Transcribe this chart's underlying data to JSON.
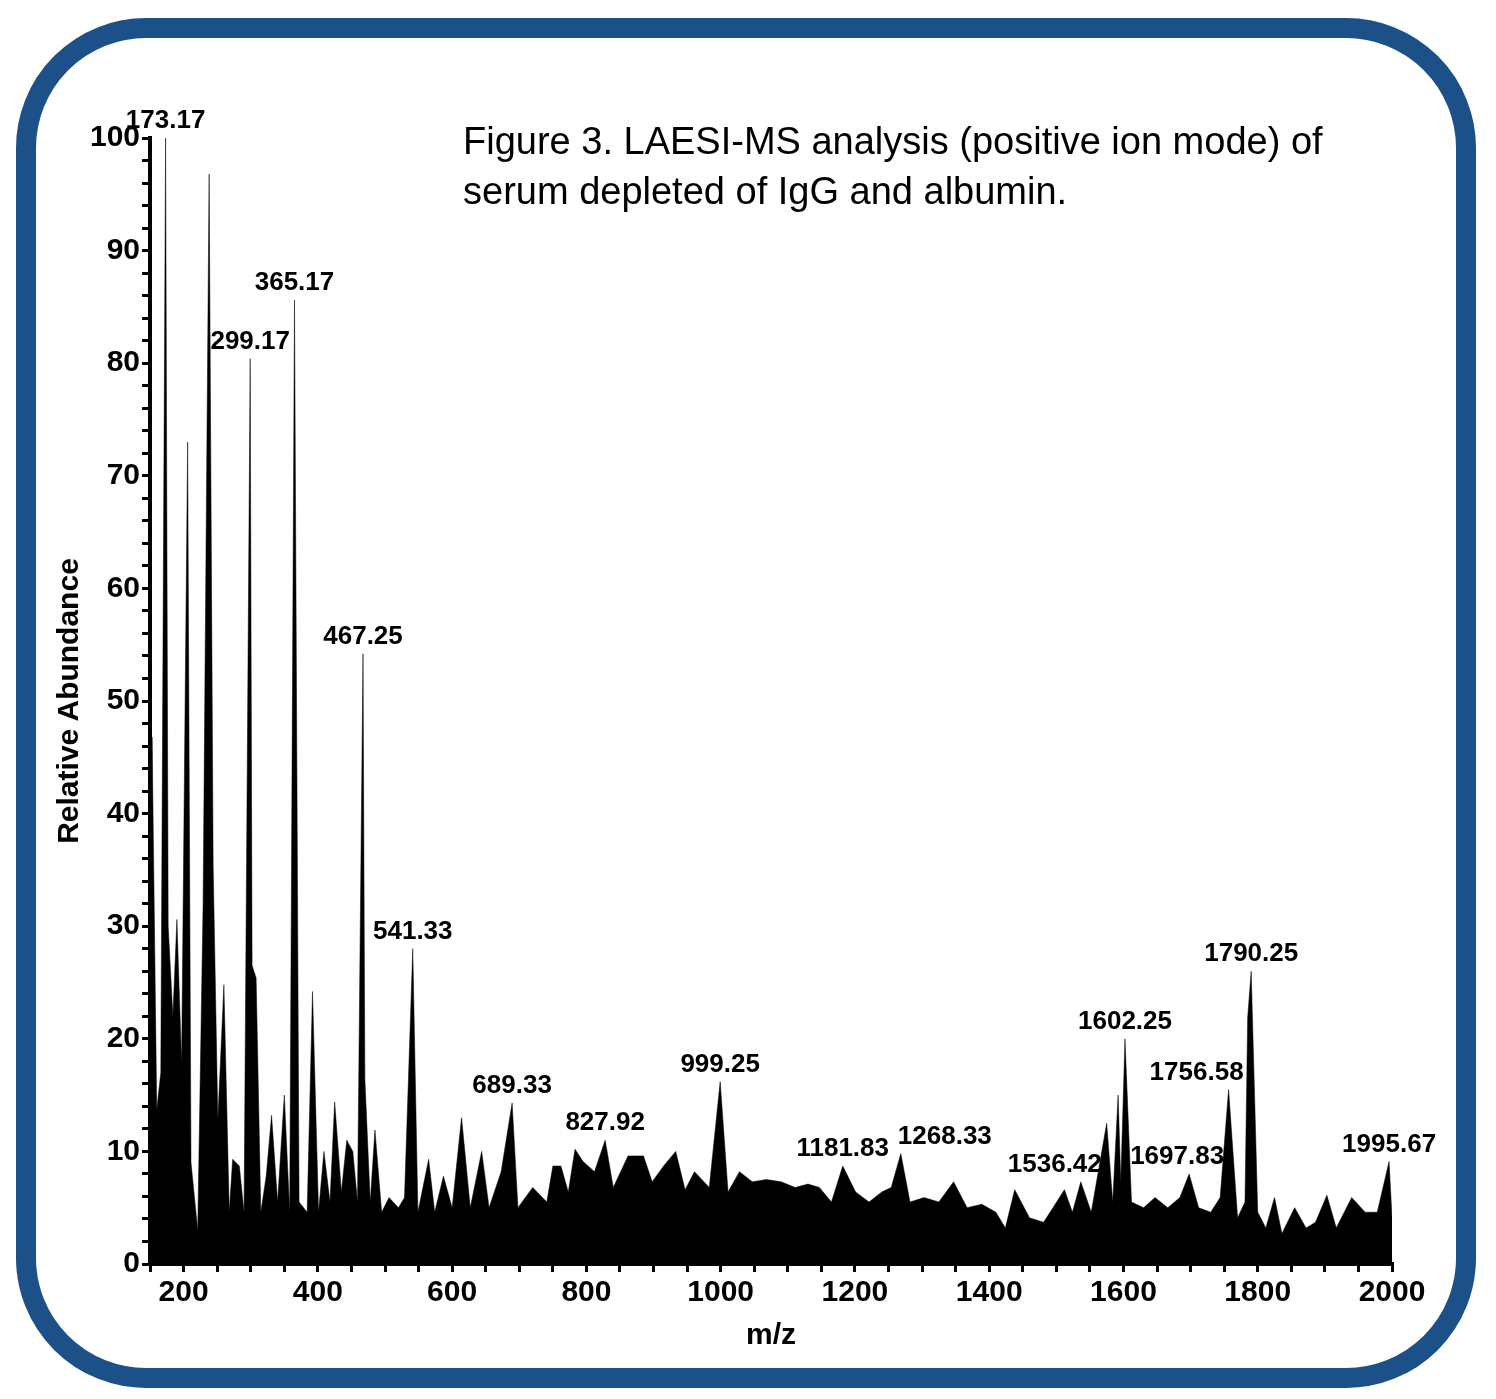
{
  "chart_data": {
    "type": "area",
    "title": "Figure 3.  LAESI-MS analysis (positive ion mode) of serum depleted of IgG and albumin.",
    "xlabel": "m/z",
    "ylabel": "Relative Abundance",
    "x": [
      150,
      153,
      160,
      166,
      173.17,
      177,
      184,
      190,
      197,
      206,
      211,
      221,
      229,
      238,
      244,
      251,
      260,
      268,
      273,
      283,
      290,
      299.17,
      302,
      308,
      315,
      323,
      331,
      340,
      350,
      358,
      365.17,
      372,
      384,
      392,
      401,
      409,
      418,
      425,
      435,
      443,
      452,
      459,
      467.25,
      470,
      478,
      485,
      495,
      506,
      520,
      529,
      541.33,
      549,
      565,
      574,
      587,
      600,
      614,
      627,
      644,
      655,
      673,
      689.33,
      698,
      720,
      741,
      750,
      762,
      773,
      783,
      795,
      812,
      827.92,
      840,
      862,
      885,
      898,
      915,
      933,
      947,
      961,
      983,
      999.25,
      1011,
      1028,
      1047,
      1068,
      1090,
      1111,
      1130,
      1147,
      1165,
      1181.83,
      1201,
      1221,
      1240,
      1254,
      1268.33,
      1282,
      1303,
      1325,
      1347,
      1367,
      1389,
      1410,
      1424,
      1438,
      1460,
      1481,
      1495,
      1512,
      1524,
      1536.42,
      1552,
      1575,
      1584,
      1592,
      1596,
      1602.25,
      1612,
      1630,
      1647,
      1666,
      1684,
      1697.83,
      1712,
      1730,
      1744,
      1756.58,
      1770,
      1781,
      1785,
      1790.25,
      1800,
      1812,
      1825,
      1836,
      1855,
      1872,
      1886,
      1903,
      1917,
      1940,
      1960,
      1978,
      1995.67,
      2000
    ],
    "series": [
      {
        "color": "#000000",
        "values": [
          3,
          46.8,
          13.7,
          17,
          100,
          30,
          22,
          30.6,
          17.8,
          73,
          9,
          3,
          32,
          96.8,
          35.4,
          12.8,
          24.8,
          4.6,
          9.3,
          8.7,
          4.6,
          80.4,
          26.5,
          25.4,
          4.6,
          7.8,
          13.2,
          5.5,
          15,
          4.6,
          85.6,
          5.5,
          4.6,
          24.2,
          4.6,
          10,
          5.5,
          14.4,
          6.4,
          11,
          10,
          5.5,
          54.2,
          16.4,
          5.5,
          11.9,
          4.6,
          5.9,
          5,
          5.9,
          28,
          4.6,
          9.3,
          4.6,
          7.8,
          5,
          13,
          5,
          10,
          5,
          8.2,
          14.3,
          5,
          6.8,
          5.5,
          8.7,
          8.7,
          6.4,
          10.2,
          9.1,
          8.2,
          11,
          6.8,
          9.6,
          9.6,
          7.3,
          8.7,
          10,
          6.6,
          8.2,
          6.8,
          16.2,
          6.4,
          8.2,
          7.3,
          7.5,
          7.3,
          6.8,
          7.1,
          6.8,
          5.5,
          8.7,
          6.4,
          5.5,
          6.4,
          6.8,
          9.8,
          5.5,
          5.9,
          5.5,
          7.3,
          5,
          5.3,
          4.6,
          3.2,
          6.6,
          4.1,
          3.7,
          5,
          6.6,
          4.6,
          7.3,
          4.6,
          12.5,
          5.5,
          15,
          7.3,
          20,
          5.5,
          5,
          5.9,
          5,
          5.9,
          8,
          5,
          4.6,
          5.9,
          15.5,
          4.1,
          5.5,
          21.9,
          26,
          4.6,
          3.2,
          5.9,
          2.7,
          5,
          3.2,
          3.7,
          6.1,
          3.2,
          5.9,
          4.6,
          4.6,
          9.1,
          4.1
        ]
      }
    ],
    "xlim": [
      150,
      2000
    ],
    "xticks": [
      {
        "value": 150,
        "label": null
      },
      200,
      {
        "value": 250,
        "label": null
      },
      {
        "value": 300,
        "label": null
      },
      {
        "value": 350,
        "label": null
      },
      400,
      {
        "value": 450,
        "label": null
      },
      {
        "value": 500,
        "label": null
      },
      {
        "value": 550,
        "label": null
      },
      600,
      {
        "value": 650,
        "label": null
      },
      {
        "value": 700,
        "label": null
      },
      {
        "value": 750,
        "label": null
      },
      800,
      {
        "value": 850,
        "label": null
      },
      {
        "value": 900,
        "label": null
      },
      {
        "value": 950,
        "label": null
      },
      1000,
      {
        "value": 1050,
        "label": null
      },
      {
        "value": 1100,
        "label": null
      },
      {
        "value": 1150,
        "label": null
      },
      1200,
      {
        "value": 1250,
        "label": null
      },
      {
        "value": 1300,
        "label": null
      },
      {
        "value": 1350,
        "label": null
      },
      1400,
      {
        "value": 1450,
        "label": null
      },
      {
        "value": 1500,
        "label": null
      },
      {
        "value": 1550,
        "label": null
      },
      1600,
      {
        "value": 1650,
        "label": null
      },
      {
        "value": 1700,
        "label": null
      },
      {
        "value": 1750,
        "label": null
      },
      1800,
      {
        "value": 1850,
        "label": null
      },
      {
        "value": 1900,
        "label": null
      },
      {
        "value": 1950,
        "label": null
      },
      2000
    ],
    "ylim": [
      0,
      100
    ],
    "yticks": [
      0,
      {
        "value": 2,
        "label": null
      },
      {
        "value": 4,
        "label": null
      },
      {
        "value": 6,
        "label": null
      },
      {
        "value": 8,
        "label": null
      },
      10,
      {
        "value": 12,
        "label": null
      },
      {
        "value": 14,
        "label": null
      },
      {
        "value": 16,
        "label": null
      },
      {
        "value": 18,
        "label": null
      },
      20,
      {
        "value": 22,
        "label": null
      },
      {
        "value": 24,
        "label": null
      },
      {
        "value": 26,
        "label": null
      },
      {
        "value": 28,
        "label": null
      },
      30,
      {
        "value": 32,
        "label": null
      },
      {
        "value": 34,
        "label": null
      },
      {
        "value": 36,
        "label": null
      },
      {
        "value": 38,
        "label": null
      },
      40,
      {
        "value": 42,
        "label": null
      },
      {
        "value": 44,
        "label": null
      },
      {
        "value": 46,
        "label": null
      },
      {
        "value": 48,
        "label": null
      },
      50,
      {
        "value": 52,
        "label": null
      },
      {
        "value": 54,
        "label": null
      },
      {
        "value": 56,
        "label": null
      },
      {
        "value": 58,
        "label": null
      },
      60,
      {
        "value": 62,
        "label": null
      },
      {
        "value": 64,
        "label": null
      },
      {
        "value": 66,
        "label": null
      },
      {
        "value": 68,
        "label": null
      },
      70,
      {
        "value": 72,
        "label": null
      },
      {
        "value": 74,
        "label": null
      },
      {
        "value": 76,
        "label": null
      },
      {
        "value": 78,
        "label": null
      },
      80,
      {
        "value": 82,
        "label": null
      },
      {
        "value": 84,
        "label": null
      },
      {
        "value": 86,
        "label": null
      },
      {
        "value": 88,
        "label": null
      },
      90,
      {
        "value": 92,
        "label": null
      },
      {
        "value": 94,
        "label": null
      },
      {
        "value": 96,
        "label": null
      },
      {
        "value": 98,
        "label": null
      },
      100
    ],
    "annotations": [
      {
        "text": "173.17",
        "x": 173.17,
        "y": 100
      },
      {
        "text": "299.17",
        "x": 299.17,
        "y": 80.4
      },
      {
        "text": "365.17",
        "x": 365.17,
        "y": 85.6
      },
      {
        "text": "467.25",
        "x": 467.25,
        "y": 54.2
      },
      {
        "text": "541.33",
        "x": 541.33,
        "y": 28
      },
      {
        "text": "689.33",
        "x": 689.33,
        "y": 14.3
      },
      {
        "text": "827.92",
        "x": 827.92,
        "y": 11
      },
      {
        "text": "999.25",
        "x": 999.25,
        "y": 16.2
      },
      {
        "text": "1181.83",
        "x": 1181.83,
        "y": 8.7
      },
      {
        "text": "1268.33",
        "x": 1268.33,
        "y": 9.8
      },
      {
        "text": "1536.42",
        "x": 1536.42,
        "y": 7.3
      },
      {
        "text": "1602.25",
        "x": 1602.25,
        "y": 20
      },
      {
        "text": "1697.83",
        "x": 1697.83,
        "y": 8
      },
      {
        "text": "1756.58",
        "x": 1756.58,
        "y": 15.5
      },
      {
        "text": "1790.25",
        "x": 1790.25,
        "y": 26
      },
      {
        "text": "1995.67",
        "x": 1995.67,
        "y": 9.1
      }
    ],
    "grid": false,
    "legend": false,
    "marker": "none",
    "line_style": "solid"
  }
}
